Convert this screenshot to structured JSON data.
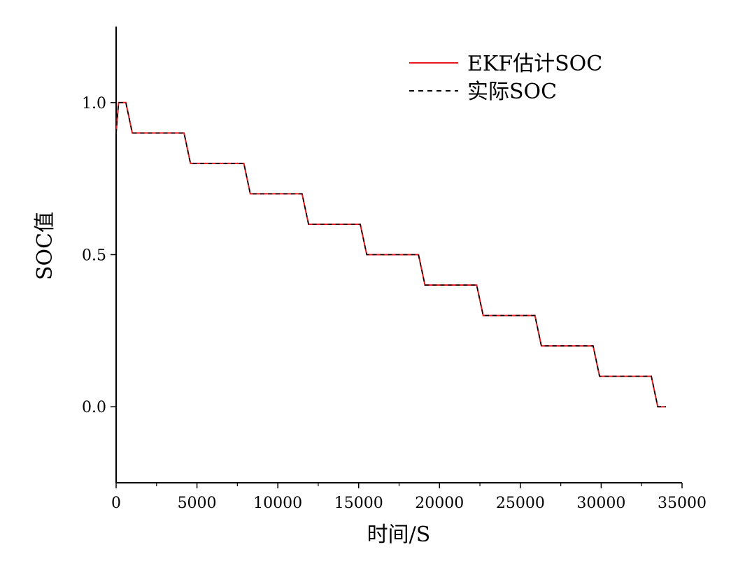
{
  "chart_data": {
    "type": "line",
    "title": "",
    "xlabel": "时间/S",
    "ylabel": "SOC值",
    "xlim": [
      0,
      35000
    ],
    "ylim": [
      -0.25,
      1.25
    ],
    "xticks": [
      0,
      5000,
      10000,
      15000,
      20000,
      25000,
      30000,
      35000
    ],
    "xtick_labels": [
      "0",
      "5000",
      "10000",
      "15000",
      "20000",
      "25000",
      "30000",
      "35000"
    ],
    "yticks": [
      0.0,
      0.5,
      1.0
    ],
    "ytick_labels": [
      "0.0",
      "0.5",
      "1.0"
    ],
    "grid": false,
    "legend_position": "top-right",
    "series": [
      {
        "name": "EKF估计SOC",
        "color": "#e8191c",
        "style": "solid",
        "x": [
          0,
          150,
          600,
          1000,
          4200,
          4600,
          7900,
          8300,
          11500,
          11900,
          15100,
          15500,
          18700,
          19100,
          22300,
          22700,
          25900,
          26300,
          29500,
          29900,
          33100,
          33500,
          34000
        ],
        "y": [
          0.9,
          1.0,
          1.0,
          0.9,
          0.9,
          0.8,
          0.8,
          0.7,
          0.7,
          0.6,
          0.6,
          0.5,
          0.5,
          0.4,
          0.4,
          0.3,
          0.3,
          0.2,
          0.2,
          0.1,
          0.1,
          0.0,
          0.0
        ]
      },
      {
        "name": "实际SOC",
        "color": "#000000",
        "style": "dashed",
        "x": [
          0,
          150,
          600,
          1000,
          4200,
          4600,
          7900,
          8300,
          11500,
          11900,
          15100,
          15500,
          18700,
          19100,
          22300,
          22700,
          25900,
          26300,
          29500,
          29900,
          33100,
          33500,
          34000
        ],
        "y": [
          0.9,
          1.0,
          1.0,
          0.9,
          0.9,
          0.8,
          0.8,
          0.7,
          0.7,
          0.6,
          0.6,
          0.5,
          0.5,
          0.4,
          0.4,
          0.3,
          0.3,
          0.2,
          0.2,
          0.1,
          0.1,
          0.0,
          0.0
        ]
      }
    ]
  }
}
